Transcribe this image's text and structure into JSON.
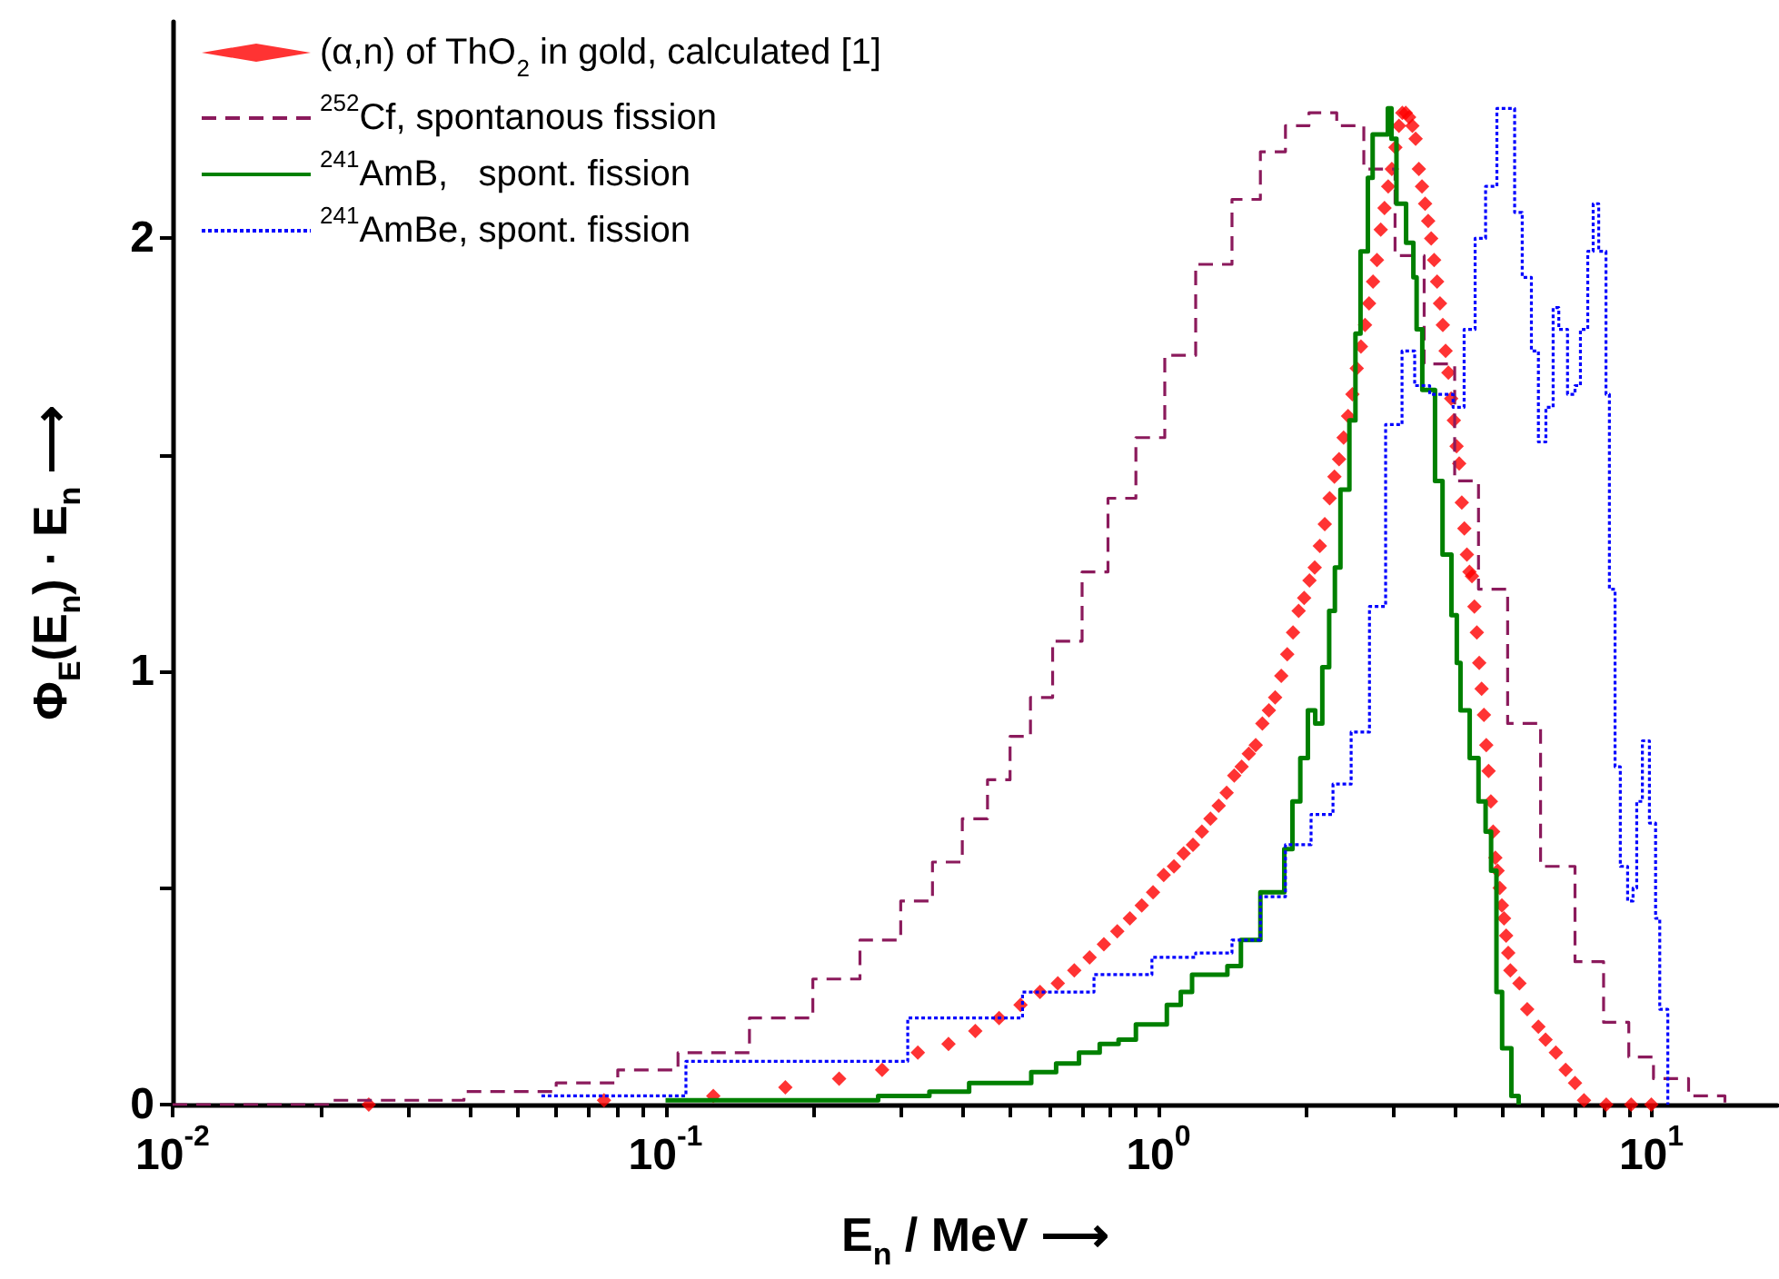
{
  "chart_data": {
    "type": "step",
    "xlabel": "E$_{n}$ / MeV ⟶",
    "ylabel": "Φ$_{E}$(E$_{n}$) · E$_{n}$ ⟶",
    "log": "x",
    "xlim": [
      0.01,
      18
    ],
    "ylim": [
      0,
      2.5
    ],
    "xticks": [
      {
        "value": 0.01,
        "label": "10$^{-2}$"
      },
      {
        "value": 0.02,
        "label": null
      },
      {
        "value": 0.03,
        "label": null
      },
      {
        "value": 0.04,
        "label": null
      },
      {
        "value": 0.05,
        "label": null
      },
      {
        "value": 0.06,
        "label": null
      },
      {
        "value": 0.07,
        "label": null
      },
      {
        "value": 0.08,
        "label": null
      },
      {
        "value": 0.09,
        "label": null
      },
      {
        "value": 0.1,
        "label": "10$^{-1}$"
      },
      {
        "value": 0.2,
        "label": null
      },
      {
        "value": 0.3,
        "label": null
      },
      {
        "value": 0.4,
        "label": null
      },
      {
        "value": 0.5,
        "label": null
      },
      {
        "value": 0.6,
        "label": null
      },
      {
        "value": 0.7,
        "label": null
      },
      {
        "value": 0.8,
        "label": null
      },
      {
        "value": 0.9,
        "label": null
      },
      {
        "value": 1,
        "label": "10$^{0}$"
      },
      {
        "value": 2,
        "label": null
      },
      {
        "value": 3,
        "label": null
      },
      {
        "value": 4,
        "label": null
      },
      {
        "value": 5,
        "label": null
      },
      {
        "value": 6,
        "label": null
      },
      {
        "value": 7,
        "label": null
      },
      {
        "value": 8,
        "label": null
      },
      {
        "value": 9,
        "label": null
      },
      {
        "value": 10,
        "label": "10$^{1}$"
      }
    ],
    "yticks": [
      0,
      {
        "value": 0.5,
        "label": null
      },
      1,
      {
        "value": 1.5,
        "label": null
      },
      2
    ],
    "legend": "top left",
    "series": [
      {
        "name": "(α,n) of ThO$_{2}$ in gold, calculated [1]",
        "type": "scatter",
        "marker": "diamond",
        "color": "#ff0000",
        "x": [
          0.025,
          0.075,
          0.125,
          0.175,
          0.225,
          0.275,
          0.325,
          0.375,
          0.425,
          0.475,
          0.525,
          0.575,
          0.625,
          0.675,
          0.725,
          0.775,
          0.825,
          0.875,
          0.925,
          0.975,
          1.025,
          1.075,
          1.125,
          1.175,
          1.225,
          1.275,
          1.325,
          1.375,
          1.425,
          1.475,
          1.525,
          1.575,
          1.625,
          1.675,
          1.725,
          1.775,
          1.825,
          1.875,
          1.925,
          1.975,
          2.025,
          2.075,
          2.125,
          2.175,
          2.225,
          2.275,
          2.325,
          2.375,
          2.425,
          2.475,
          2.525,
          2.575,
          2.625,
          2.675,
          2.725,
          2.775,
          2.825,
          2.875,
          2.925,
          2.975,
          3.025,
          3.075,
          3.125,
          3.175,
          3.225,
          3.275,
          3.325,
          3.375,
          3.425,
          3.475,
          3.525,
          3.575,
          3.625,
          3.675,
          3.725,
          3.775,
          3.825,
          3.875,
          3.925,
          3.975,
          4.025,
          4.075,
          4.125,
          4.175,
          4.225,
          4.275,
          4.325,
          4.375,
          4.425,
          4.475,
          4.525,
          4.575,
          4.625,
          4.675,
          4.725,
          4.775,
          4.825,
          4.875,
          4.925,
          4.975,
          5.025,
          5.075,
          5.125,
          5.175,
          5.4,
          5.6,
          5.9,
          6.1,
          6.4,
          6.7,
          7.0,
          7.3,
          8.1,
          9.1,
          10.0
        ],
        "values": [
          0,
          0.01,
          0.02,
          0.04,
          0.06,
          0.08,
          0.12,
          0.14,
          0.17,
          0.2,
          0.23,
          0.26,
          0.28,
          0.31,
          0.34,
          0.37,
          0.4,
          0.43,
          0.46,
          0.49,
          0.53,
          0.55,
          0.58,
          0.6,
          0.63,
          0.66,
          0.69,
          0.72,
          0.76,
          0.78,
          0.81,
          0.83,
          0.88,
          0.91,
          0.94,
          0.99,
          1.04,
          1.09,
          1.14,
          1.17,
          1.21,
          1.24,
          1.29,
          1.34,
          1.4,
          1.45,
          1.49,
          1.54,
          1.59,
          1.64,
          1.7,
          1.75,
          1.8,
          1.85,
          1.9,
          1.95,
          2.02,
          2.07,
          2.12,
          2.16,
          2.21,
          2.26,
          2.29,
          2.29,
          2.28,
          2.26,
          2.23,
          2.16,
          2.12,
          2.08,
          2.04,
          2.0,
          1.95,
          1.9,
          1.85,
          1.8,
          1.74,
          1.69,
          1.63,
          1.58,
          1.52,
          1.48,
          1.39,
          1.33,
          1.27,
          1.23,
          1.22,
          1.15,
          1.09,
          1.02,
          0.96,
          0.9,
          0.83,
          0.77,
          0.7,
          0.63,
          0.57,
          0.54,
          0.5,
          0.46,
          0.43,
          0.39,
          0.35,
          0.31,
          0.28,
          0.22,
          0.18,
          0.15,
          0.12,
          0.08,
          0.05,
          0.01,
          0,
          0,
          0
        ]
      },
      {
        "name": "$^{252}$Cf, spontanous fission",
        "line_style": "dashed",
        "color": "#8b1a5c",
        "x": [
          0.01,
          0.021,
          0.039,
          0.06,
          0.08,
          0.106,
          0.148,
          0.199,
          0.248,
          0.3,
          0.348,
          0.4,
          0.45,
          0.5,
          0.55,
          0.61,
          0.7,
          0.79,
          0.9,
          1.03,
          1.19,
          1.41,
          1.61,
          1.81,
          2.02,
          2.3,
          2.61,
          3.02,
          3.46,
          3.99,
          4.46,
          5.11,
          5.96,
          7.0,
          8.0,
          9.0,
          10.1,
          11.9,
          14.1
        ],
        "values": [
          0,
          0.01,
          0.03,
          0.05,
          0.08,
          0.12,
          0.2,
          0.29,
          0.38,
          0.47,
          0.56,
          0.66,
          0.75,
          0.85,
          0.94,
          1.07,
          1.23,
          1.4,
          1.54,
          1.73,
          1.94,
          2.09,
          2.2,
          2.26,
          2.29,
          2.26,
          2.16,
          1.96,
          1.71,
          1.44,
          1.19,
          0.88,
          0.55,
          0.33,
          0.19,
          0.11,
          0.06,
          0.02,
          0
        ]
      },
      {
        "name": "$^{241}$AmB,   spont. fission",
        "line_style": "solid",
        "color": "#008000",
        "x": [
          0.1,
          0.27,
          0.343,
          0.413,
          0.552,
          0.62,
          0.69,
          0.76,
          0.83,
          0.9,
          1.04,
          1.11,
          1.17,
          1.38,
          1.47,
          1.61,
          1.8,
          1.87,
          1.94,
          2.01,
          2.08,
          2.15,
          2.22,
          2.28,
          2.34,
          2.44,
          2.51,
          2.57,
          2.66,
          2.72,
          2.92,
          2.97,
          3.04,
          3.18,
          3.29,
          3.34,
          3.43,
          3.64,
          3.77,
          3.93,
          4.03,
          4.1,
          4.28,
          4.46,
          4.61,
          4.73,
          4.85,
          4.98,
          5.2,
          5.38
        ],
        "values": [
          0.01,
          0.02,
          0.03,
          0.05,
          0.075,
          0.095,
          0.12,
          0.14,
          0.15,
          0.185,
          0.23,
          0.26,
          0.3,
          0.32,
          0.38,
          0.49,
          0.59,
          0.7,
          0.8,
          0.91,
          0.88,
          1.01,
          1.14,
          1.24,
          1.42,
          1.58,
          1.78,
          1.97,
          2.14,
          2.24,
          2.3,
          2.23,
          2.08,
          1.99,
          1.91,
          1.79,
          1.65,
          1.44,
          1.27,
          1.13,
          1.02,
          0.91,
          0.8,
          0.7,
          0.63,
          0.54,
          0.26,
          0.13,
          0.02,
          0
        ]
      },
      {
        "name": "$^{241}$AmBe, spont. fission",
        "line_style": "dotted",
        "color": "#0000ff",
        "x": [
          0.056,
          0.11,
          0.31,
          0.53,
          0.74,
          0.97,
          1.19,
          1.41,
          1.61,
          1.81,
          2.04,
          2.26,
          2.46,
          2.68,
          2.89,
          3.12,
          3.31,
          3.55,
          3.96,
          4.17,
          4.39,
          4.61,
          4.86,
          5.28,
          5.47,
          5.71,
          5.9,
          6.11,
          6.32,
          6.49,
          6.76,
          7.0,
          7.18,
          7.43,
          7.62,
          7.82,
          8.09,
          8.22,
          8.44,
          8.65,
          8.95,
          9.18,
          9.34,
          9.59,
          9.91,
          10.2,
          10.4,
          10.8
        ],
        "values": [
          0.02,
          0.1,
          0.2,
          0.26,
          0.3,
          0.34,
          0.35,
          0.38,
          0.48,
          0.6,
          0.67,
          0.74,
          0.86,
          1.15,
          1.57,
          1.74,
          1.66,
          1.64,
          1.61,
          1.79,
          2.0,
          2.12,
          2.3,
          2.06,
          1.91,
          1.74,
          1.53,
          1.61,
          1.84,
          1.79,
          1.64,
          1.66,
          1.79,
          1.97,
          2.08,
          1.97,
          1.64,
          1.19,
          0.78,
          0.55,
          0.47,
          0.5,
          0.7,
          0.84,
          0.65,
          0.43,
          0.22,
          0
        ]
      }
    ]
  }
}
